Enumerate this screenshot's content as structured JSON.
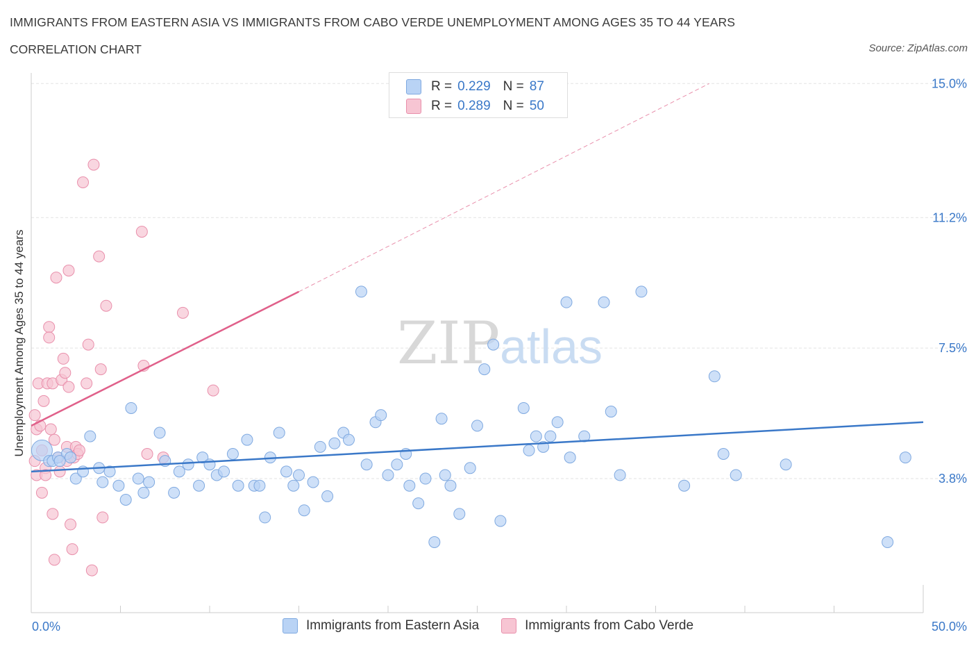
{
  "header": {
    "title": "IMMIGRANTS FROM EASTERN ASIA VS IMMIGRANTS FROM CABO VERDE UNEMPLOYMENT AMONG AGES 35 TO 44 YEARS",
    "subtitle": "CORRELATION CHART",
    "source": "Source: ZipAtlas.com"
  },
  "legend": {
    "rows": [
      {
        "r_label": "R =",
        "r_value": "0.229",
        "n_label": "N =",
        "n_value": "87"
      },
      {
        "r_label": "R =",
        "r_value": "0.289",
        "n_label": "N =",
        "n_value": "50"
      }
    ]
  },
  "colors": {
    "blue_fill": "#b9d3f5",
    "blue_stroke": "#7fa9e0",
    "blue_line": "#3a78c8",
    "pink_fill": "#f7c5d3",
    "pink_stroke": "#e98fab",
    "pink_line": "#e0608a",
    "grid": "#e3e3e3",
    "axis_text": "#3a78c8"
  },
  "chart_data": {
    "type": "scatter",
    "title": "IMMIGRANTS FROM EASTERN ASIA VS IMMIGRANTS FROM CABO VERDE UNEMPLOYMENT AMONG AGES 35 TO 44 YEARS",
    "ylabel": "Unemployment Among Ages 35 to 44 years",
    "xlabel": "",
    "xlim": [
      0,
      50
    ],
    "ylim": [
      0,
      15.4
    ],
    "x_tick_labels": [
      "0.0%",
      "50.0%"
    ],
    "y_tick_values": [
      3.8,
      7.5,
      11.2,
      15.0
    ],
    "y_tick_labels": [
      "3.8%",
      "7.5%",
      "11.2%",
      "15.0%"
    ],
    "watermark": "ZIPatlas",
    "series": [
      {
        "name": "Immigrants from Eastern Asia",
        "color": "#b9d3f5",
        "R": 0.229,
        "N": 87,
        "trend": {
          "x": [
            0,
            50
          ],
          "y": [
            4.0,
            5.4
          ],
          "style": "solid"
        },
        "points": [
          [
            0.6,
            4.6
          ],
          [
            1.0,
            4.3
          ],
          [
            1.2,
            4.3
          ],
          [
            1.5,
            4.4
          ],
          [
            2.0,
            4.5
          ],
          [
            2.2,
            4.4
          ],
          [
            2.5,
            3.8
          ],
          [
            2.9,
            4.0
          ],
          [
            3.3,
            5.0
          ],
          [
            3.8,
            4.1
          ],
          [
            4.0,
            3.7
          ],
          [
            4.4,
            4.0
          ],
          [
            4.9,
            3.6
          ],
          [
            5.3,
            3.2
          ],
          [
            5.6,
            5.8
          ],
          [
            6.0,
            3.8
          ],
          [
            6.3,
            3.4
          ],
          [
            6.6,
            3.7
          ],
          [
            7.2,
            5.1
          ],
          [
            7.5,
            4.3
          ],
          [
            8.0,
            3.4
          ],
          [
            8.3,
            4.0
          ],
          [
            8.8,
            4.2
          ],
          [
            9.4,
            3.6
          ],
          [
            9.6,
            4.4
          ],
          [
            10.0,
            4.2
          ],
          [
            10.4,
            3.9
          ],
          [
            10.8,
            4.0
          ],
          [
            11.3,
            4.5
          ],
          [
            11.6,
            3.6
          ],
          [
            12.1,
            4.9
          ],
          [
            12.5,
            3.6
          ],
          [
            12.8,
            3.6
          ],
          [
            13.1,
            2.7
          ],
          [
            13.4,
            4.4
          ],
          [
            13.9,
            5.1
          ],
          [
            14.3,
            4.0
          ],
          [
            14.7,
            3.6
          ],
          [
            15.0,
            3.9
          ],
          [
            15.3,
            2.9
          ],
          [
            15.8,
            3.7
          ],
          [
            16.2,
            4.7
          ],
          [
            16.6,
            3.3
          ],
          [
            17.0,
            4.8
          ],
          [
            17.5,
            5.1
          ],
          [
            17.8,
            4.9
          ],
          [
            18.5,
            9.1
          ],
          [
            18.8,
            4.2
          ],
          [
            19.3,
            5.4
          ],
          [
            19.6,
            5.6
          ],
          [
            20.0,
            3.9
          ],
          [
            20.5,
            4.2
          ],
          [
            21.0,
            4.5
          ],
          [
            21.2,
            3.6
          ],
          [
            21.7,
            3.1
          ],
          [
            22.1,
            3.8
          ],
          [
            22.6,
            2.0
          ],
          [
            23.0,
            5.5
          ],
          [
            23.2,
            3.9
          ],
          [
            23.5,
            3.6
          ],
          [
            24.0,
            2.8
          ],
          [
            24.6,
            4.1
          ],
          [
            25.0,
            5.3
          ],
          [
            25.4,
            6.9
          ],
          [
            25.9,
            7.6
          ],
          [
            26.3,
            2.6
          ],
          [
            27.6,
            5.8
          ],
          [
            27.9,
            4.6
          ],
          [
            28.3,
            5.0
          ],
          [
            28.7,
            4.7
          ],
          [
            29.1,
            5.0
          ],
          [
            29.5,
            5.4
          ],
          [
            30.0,
            8.8
          ],
          [
            30.2,
            4.4
          ],
          [
            31.0,
            5.0
          ],
          [
            32.1,
            8.8
          ],
          [
            32.5,
            5.7
          ],
          [
            33.0,
            3.9
          ],
          [
            34.2,
            9.1
          ],
          [
            36.6,
            3.6
          ],
          [
            38.3,
            6.7
          ],
          [
            38.8,
            4.5
          ],
          [
            39.5,
            3.9
          ],
          [
            42.3,
            4.2
          ],
          [
            48.0,
            2.0
          ],
          [
            49.0,
            4.4
          ],
          [
            1.6,
            4.3
          ]
        ]
      },
      {
        "name": "Immigrants from Cabo Verde",
        "color": "#f7c5d3",
        "R": 0.289,
        "N": 50,
        "trend": {
          "x": [
            0,
            15
          ],
          "y": [
            5.3,
            9.1
          ],
          "style": "solid",
          "extended": {
            "x": [
              15,
              38
            ],
            "y": [
              9.1,
              15.0
            ],
            "style": "dashed"
          }
        },
        "points": [
          [
            0.2,
            5.6
          ],
          [
            0.2,
            4.3
          ],
          [
            0.3,
            3.9
          ],
          [
            0.3,
            5.2
          ],
          [
            0.4,
            6.5
          ],
          [
            0.5,
            5.3
          ],
          [
            0.6,
            4.6
          ],
          [
            0.6,
            3.4
          ],
          [
            0.7,
            6.0
          ],
          [
            0.8,
            4.1
          ],
          [
            0.8,
            3.9
          ],
          [
            0.9,
            6.5
          ],
          [
            1.0,
            8.1
          ],
          [
            1.0,
            7.8
          ],
          [
            1.1,
            5.2
          ],
          [
            1.2,
            6.5
          ],
          [
            1.2,
            2.8
          ],
          [
            1.3,
            4.9
          ],
          [
            1.3,
            1.5
          ],
          [
            1.4,
            9.5
          ],
          [
            1.5,
            4.4
          ],
          [
            1.6,
            4.0
          ],
          [
            1.7,
            6.6
          ],
          [
            1.8,
            7.2
          ],
          [
            1.9,
            6.8
          ],
          [
            2.0,
            4.7
          ],
          [
            2.0,
            4.3
          ],
          [
            2.1,
            6.4
          ],
          [
            2.1,
            9.7
          ],
          [
            2.2,
            2.5
          ],
          [
            2.3,
            1.8
          ],
          [
            2.4,
            4.4
          ],
          [
            2.5,
            4.7
          ],
          [
            2.6,
            4.5
          ],
          [
            2.7,
            4.6
          ],
          [
            2.9,
            12.2
          ],
          [
            3.1,
            6.5
          ],
          [
            3.2,
            7.6
          ],
          [
            3.4,
            1.2
          ],
          [
            3.5,
            12.7
          ],
          [
            3.8,
            10.1
          ],
          [
            3.9,
            6.9
          ],
          [
            4.0,
            2.7
          ],
          [
            4.2,
            8.7
          ],
          [
            6.2,
            10.8
          ],
          [
            6.3,
            7.0
          ],
          [
            6.5,
            4.5
          ],
          [
            7.4,
            4.4
          ],
          [
            8.5,
            8.5
          ],
          [
            10.2,
            6.3
          ]
        ]
      }
    ]
  },
  "bottom_legend": [
    {
      "label": "Immigrants from Eastern Asia"
    },
    {
      "label": "Immigrants from Cabo Verde"
    }
  ]
}
